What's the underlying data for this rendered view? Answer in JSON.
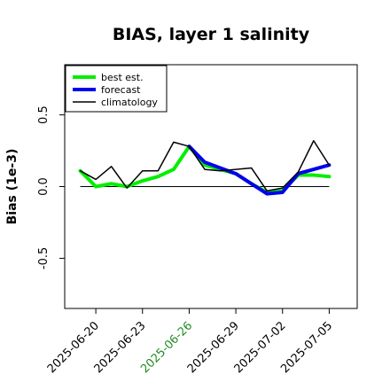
{
  "chart_data": {
    "type": "line",
    "title": "BIAS, layer 1 salinity",
    "ylabel": "Bias (1e-3)",
    "xlabel": "",
    "ylim": [
      -0.85,
      0.85
    ],
    "yticks": [
      "-0.5",
      "0.0",
      "0.5"
    ],
    "ytick_values": [
      -0.5,
      0.0,
      0.5
    ],
    "xtick_labels": [
      "2025-06-20",
      "2025-06-23",
      "2025-06-26",
      "2025-06-29",
      "2025-07-02",
      "2025-07-05"
    ],
    "xtick_index": [
      1,
      4,
      7,
      10,
      13,
      16
    ],
    "highlight_tick": "2025-06-26",
    "highlight_color": "#228B22",
    "x": [
      "2025-06-19",
      "2025-06-20",
      "2025-06-21",
      "2025-06-22",
      "2025-06-23",
      "2025-06-24",
      "2025-06-25",
      "2025-06-26",
      "2025-06-27",
      "2025-06-28",
      "2025-06-29",
      "2025-06-30",
      "2025-07-01",
      "2025-07-02",
      "2025-07-03",
      "2025-07-04",
      "2025-07-05"
    ],
    "xlim_index": [
      -1.0,
      17.8
    ],
    "zero_line": 0.0,
    "legend_position": "top-left",
    "series": [
      {
        "name": "best est.",
        "color": "#00ee00",
        "width": 4,
        "values": [
          0.11,
          0.0,
          0.02,
          0.0,
          0.04,
          0.07,
          0.12,
          0.28,
          0.15,
          0.12,
          0.09,
          0.02,
          -0.04,
          -0.03,
          0.08,
          0.08,
          0.07
        ]
      },
      {
        "name": "forecast",
        "color": "#0000ee",
        "width": 4,
        "values": [
          null,
          null,
          null,
          null,
          null,
          null,
          null,
          0.28,
          0.17,
          0.13,
          0.09,
          0.02,
          -0.05,
          -0.04,
          0.09,
          0.12,
          0.15
        ]
      },
      {
        "name": "climatology",
        "color": "#000000",
        "width": 1.5,
        "values": [
          0.11,
          0.05,
          0.14,
          -0.01,
          0.11,
          0.11,
          0.31,
          0.28,
          0.12,
          0.11,
          0.12,
          0.13,
          -0.03,
          -0.01,
          0.1,
          0.32,
          0.15
        ]
      }
    ]
  }
}
